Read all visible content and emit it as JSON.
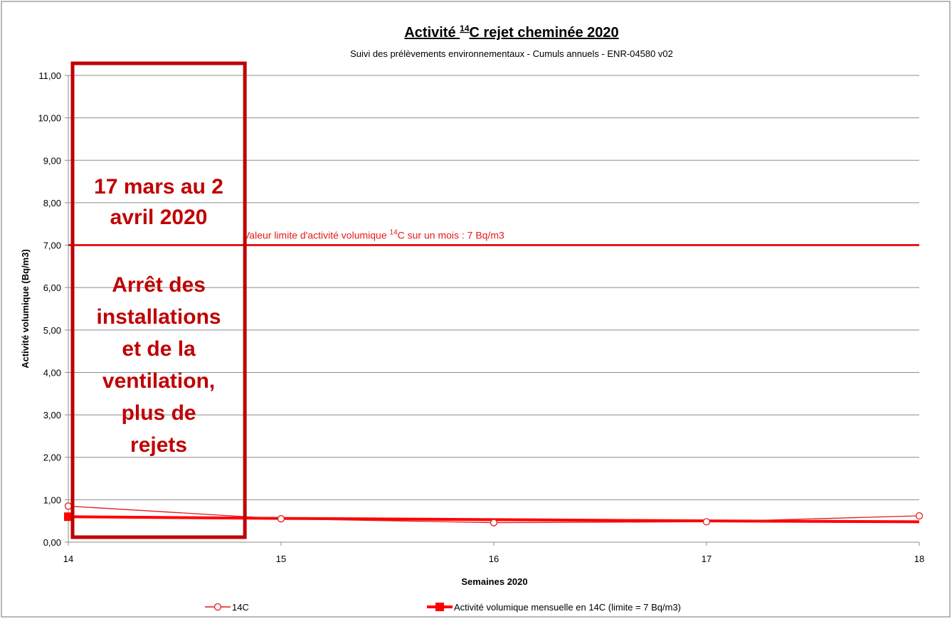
{
  "chart_data": {
    "type": "line",
    "title": "Activité ¹⁴C rejet cheminée 2020",
    "title_parts": {
      "pre": "Activité ",
      "sup": "14",
      "post": "C rejet cheminée 2020"
    },
    "subtitle": "Suivi des prélèvements environnementaux - Cumuls annuels - ENR-04580 v02",
    "xlabel": "Semaines 2020",
    "ylabel": "Activité volumique (Bq/m3)",
    "x": [
      14,
      15,
      16,
      17,
      18
    ],
    "x_ticks": [
      "14",
      "15",
      "16",
      "17",
      "18"
    ],
    "xlim": [
      14,
      18
    ],
    "ylim": [
      0,
      11
    ],
    "y_ticks": [
      "0,00",
      "1,00",
      "2,00",
      "3,00",
      "4,00",
      "5,00",
      "6,00",
      "7,00",
      "8,00",
      "9,00",
      "10,00",
      "11,00"
    ],
    "grid": true,
    "legend_position": "bottom",
    "series": [
      {
        "name": "14C",
        "color": "#e41a1c",
        "marker": "open-circle",
        "values": [
          0.85,
          0.55,
          0.46,
          0.48,
          0.62
        ]
      },
      {
        "name": "Activité  volumique mensuelle en 14C  (limite = 7 Bq/m3)",
        "color": "#ff0000",
        "marker": "filled-square",
        "values": [
          0.6,
          0.56,
          0.53,
          0.5,
          0.48
        ]
      }
    ],
    "reference_line": {
      "value": 7,
      "color": "#e41a1c",
      "label_parts": {
        "pre": "Valeur limite d'activité volumique ",
        "sup": "14",
        "post": "C sur un mois : 7 Bq/m3"
      }
    },
    "annotation_box": {
      "x_range": [
        14,
        14.83
      ],
      "color": "#c00000",
      "lines_top": [
        "17 mars au 2",
        "avril 2020"
      ],
      "lines_bottom": [
        "Arrêt des",
        "installations",
        "et de la",
        "ventilation,",
        "plus de",
        "rejets"
      ]
    }
  }
}
